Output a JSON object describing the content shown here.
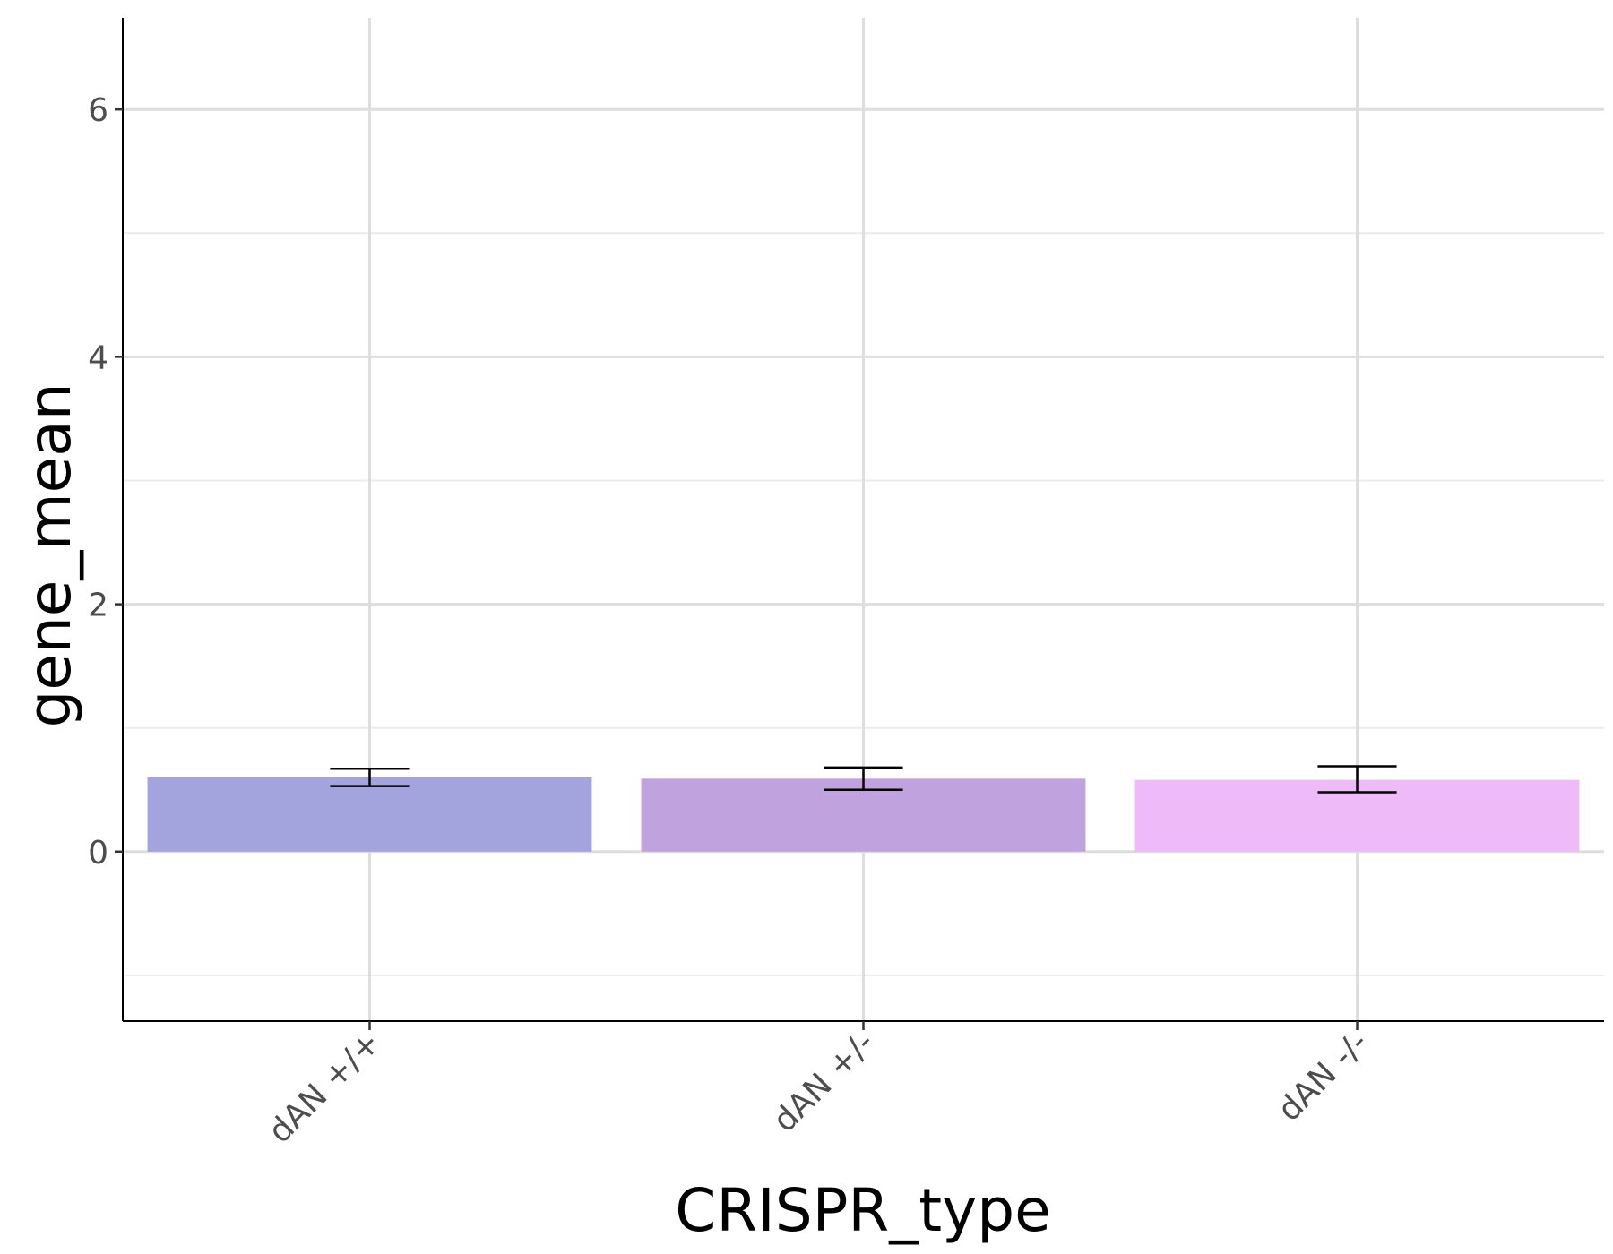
{
  "chart_data": {
    "type": "bar",
    "title": "",
    "xlabel": "CRISPR_type",
    "ylabel": "gene_mean",
    "categories": [
      "dAN +/+",
      "dAN +/-",
      "dAN -/-"
    ],
    "values": [
      0.6,
      0.59,
      0.58
    ],
    "error_bars": [
      {
        "low": 0.53,
        "high": 0.67
      },
      {
        "low": 0.5,
        "high": 0.68
      },
      {
        "low": 0.48,
        "high": 0.69
      }
    ],
    "colors": [
      "#a3a3de",
      "#c0a3de",
      "#eebaf7"
    ],
    "ylim": [
      -1.37,
      6.74
    ],
    "yticks": [
      0,
      2,
      4,
      6
    ],
    "yticks_minor": [
      -1,
      1,
      3,
      5
    ],
    "grid": true,
    "legend": "none"
  }
}
